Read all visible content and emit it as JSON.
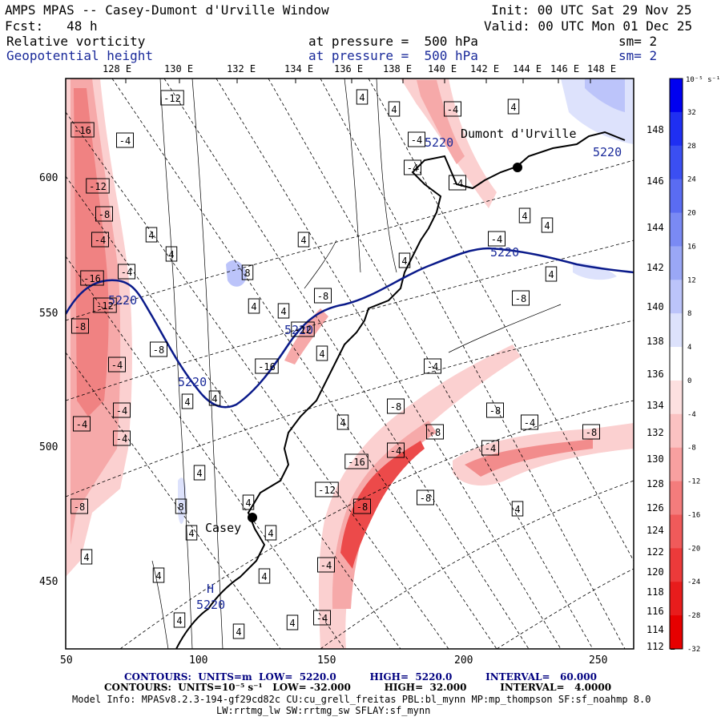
{
  "header": {
    "title": "AMPS MPAS -- Casey-Dumont d'Urville Window",
    "init": "Init: 00 UTC Sat 29 Nov 25",
    "fcst": "Fcst:   48 h",
    "valid": "Valid: 00 UTC Mon 01 Dec 25",
    "field1": "Relative vorticity",
    "field1_level": "at pressure =  500 hPa",
    "field1_sm": "sm= 2",
    "field2": "Geopotential height",
    "field2_level": "at pressure =  500 hPa",
    "field2_sm": "sm= 2"
  },
  "longitude_labels": [
    "128 E",
    "130 E",
    "132 E",
    "134 E",
    "136 E",
    "138 E",
    "140 E",
    "142 E",
    "144 E",
    "146 E",
    "148 E"
  ],
  "right_lon_labels": [
    "148 E",
    "146 E",
    "144 E",
    "142 E",
    "140 E",
    "138 E",
    "136 E",
    "134 E",
    "132 E",
    "130 E",
    "128 E",
    "126 E",
    "124 E",
    "122 E",
    "120 E",
    "118 E",
    "116 E",
    "114 E",
    "112 E"
  ],
  "x_axis_ticks": [
    "50",
    "100",
    "150",
    "200",
    "250"
  ],
  "y_axis_ticks": [
    "600",
    "550",
    "500",
    "450"
  ],
  "places": [
    {
      "name": "Casey"
    },
    {
      "name": "Dumont d'Urville"
    }
  ],
  "height_labels": [
    "5220",
    "5220",
    "5220",
    "5220",
    "5220",
    "5220",
    "5220"
  ],
  "high_marker": "H",
  "vorticity_labels": {
    "neg": [
      "-16",
      "-12",
      "-8",
      "-4",
      "-16",
      "-12",
      "-8",
      "-4",
      "-4",
      "-4",
      "-4",
      "-8",
      "-12",
      "-4",
      "-4",
      "-8",
      "-12",
      "-16",
      "-8",
      "-4",
      "-4",
      "-4",
      "-4",
      "-4",
      "-4",
      "-8",
      "-8",
      "-8",
      "-4",
      "-16",
      "-12",
      "-8",
      "-8",
      "-4",
      "-4",
      "-4",
      "-4",
      "-8",
      "-8"
    ],
    "pos": [
      "4",
      "4",
      "4",
      "4",
      "4",
      "4",
      "8",
      "4",
      "4",
      "4",
      "4",
      "4",
      "4",
      "4",
      "8",
      "4",
      "4",
      "4",
      "4",
      "4",
      "4",
      "4",
      "4",
      "4",
      "4",
      "4",
      "4",
      "4",
      "4"
    ]
  },
  "colorbar": {
    "unit": "10⁻⁵ s⁻¹",
    "labels": [
      "32",
      "28",
      "24",
      "20",
      "16",
      "12",
      "8",
      "4",
      "0",
      "-4",
      "-8",
      "-12",
      "-16",
      "-20",
      "-24",
      "-28",
      "-32"
    ],
    "colors": [
      "#0000f0",
      "#1f2ff2",
      "#3b4ff2",
      "#5a6cf2",
      "#7a8af4",
      "#9aa7f6",
      "#bcc4fa",
      "#dde2fc",
      "#ffffff",
      "#fde0e0",
      "#fbc2c2",
      "#f8a0a0",
      "#f47c7c",
      "#f05a5a",
      "#ec3a3a",
      "#e81c1c",
      "#e60000"
    ]
  },
  "footer": {
    "line1": "CONTOURS:  UNITS=m  LOW=  5220.0          HIGH=  5220.0          INTERVAL=   60.000",
    "line2": "CONTOURS:  UNITS=10⁻⁵ s⁻¹   LOW= -32.000          HIGH=  32.000          INTERVAL=   4.0000",
    "model": "Model Info: MPASv8.2.3-194-gf29cd82c CU:cu_grell_freitas PBL:bl_mynn MP:mp_thompson SF:sf_noahmp 8.0",
    "model2": "LW:rrtmg_lw SW:rrtmg_sw SFLAY:sf_mynn"
  }
}
